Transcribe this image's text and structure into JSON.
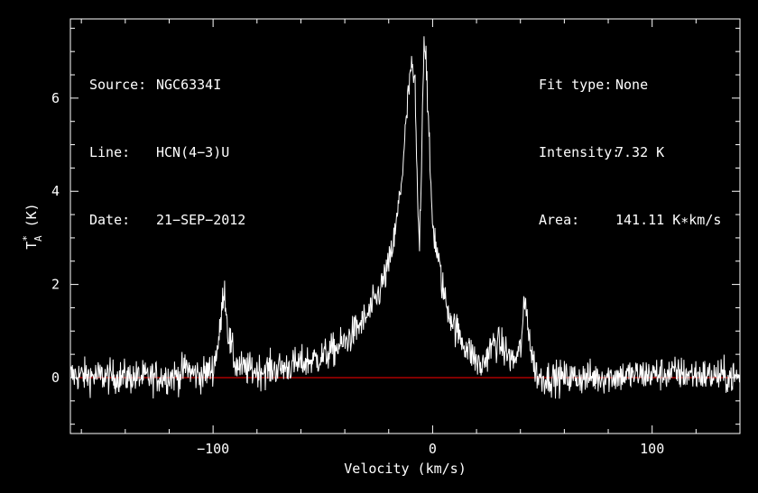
{
  "header": {
    "left": [
      {
        "key": "Source:",
        "value": "NGC6334I"
      },
      {
        "key": "Line:",
        "value": "HCN(4−3)U"
      },
      {
        "key": "Date:",
        "value": "21−SEP−2012"
      }
    ],
    "right": [
      {
        "key": "Fit type:",
        "value": "None"
      },
      {
        "key": "Intensity:",
        "value": "7.32 K"
      },
      {
        "key": "Area:",
        "value": "141.11 K∗km/s"
      }
    ]
  },
  "colors": {
    "background": "#000000",
    "axes": "#ffffff",
    "spectrum": "#ffffff",
    "baseline": "#ff0000"
  },
  "chart_data": {
    "type": "line",
    "title": "",
    "xlabel": "Velocity (km/s)",
    "ylabel": "T",
    "ylabel_sup": "*",
    "ylabel_sub": "A",
    "ylabel_unit": " (K)",
    "xlim": [
      -165,
      140
    ],
    "ylim": [
      -1.2,
      7.7
    ],
    "xticks": [
      -100,
      0,
      100
    ],
    "xtick_labels": [
      "−100",
      "0",
      "100"
    ],
    "yticks": [
      0,
      2,
      4,
      6
    ],
    "ytick_labels": [
      "0",
      "2",
      "4",
      "6"
    ],
    "grid": false,
    "baseline": 0,
    "noise_rms": 0.18,
    "series": [
      {
        "x": [
          -165,
          -130,
          -115,
          -112,
          -110,
          -105,
          -100,
          -97,
          -95,
          -93,
          -90,
          -87,
          -80,
          -70,
          -60,
          -50,
          -40,
          -30,
          -25,
          -20,
          -17,
          -14,
          -12,
          -10,
          -8,
          -7,
          -6,
          -5,
          -4,
          -3,
          -2,
          -1,
          0,
          2,
          4,
          6,
          10,
          14,
          18,
          22,
          25,
          28,
          31,
          34,
          37,
          40,
          42,
          43,
          45,
          48,
          55,
          70,
          90,
          110,
          140
        ],
        "y": [
          0.05,
          0.0,
          0.05,
          0.25,
          0.1,
          0.05,
          0.2,
          0.9,
          2.0,
          0.9,
          0.3,
          0.2,
          0.15,
          0.2,
          0.3,
          0.45,
          0.75,
          1.3,
          1.75,
          2.4,
          3.1,
          4.3,
          5.5,
          6.65,
          6.3,
          4.0,
          2.8,
          4.8,
          7.25,
          7.0,
          5.5,
          4.3,
          3.3,
          2.7,
          2.1,
          1.6,
          1.1,
          0.75,
          0.5,
          0.2,
          0.5,
          0.75,
          0.7,
          0.5,
          0.35,
          0.6,
          1.6,
          1.4,
          0.5,
          0.0,
          0.0,
          0.0,
          0.05,
          0.1,
          0.0
        ]
      }
    ]
  }
}
